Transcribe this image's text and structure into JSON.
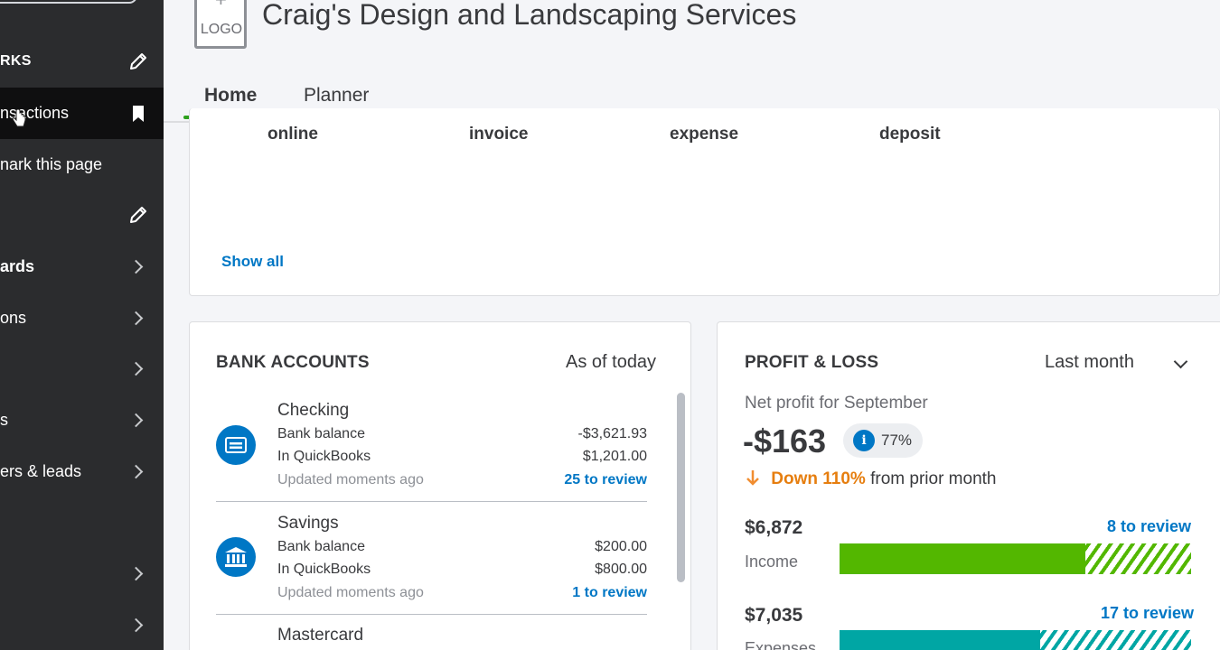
{
  "sidebar": {
    "items": [
      {
        "label": "RKS",
        "icon": "pencil-icon"
      },
      {
        "label": "nsactions",
        "icon": "bookmark-icon"
      },
      {
        "label": "nark this page"
      },
      {
        "label": "",
        "icon": "pencil-icon"
      },
      {
        "label": "ards",
        "icon": "chevron-right-icon"
      },
      {
        "label": "ons",
        "icon": "chevron-right-icon"
      },
      {
        "label": "",
        "icon": "chevron-right-icon"
      },
      {
        "label": "s",
        "icon": "chevron-right-icon"
      },
      {
        "label": "ers & leads",
        "icon": "chevron-right-icon"
      },
      {
        "label": "",
        "icon": "chevron-right-icon"
      },
      {
        "label": "",
        "icon": "chevron-right-icon"
      }
    ]
  },
  "header": {
    "logo_plus": "+",
    "logo_text": "LOGO",
    "company": "Craig's Design and Landscaping Services",
    "tabs": [
      "Home",
      "Planner"
    ]
  },
  "quick_actions": {
    "items": [
      "online",
      "invoice",
      "expense",
      "deposit"
    ],
    "show_all": "Show all"
  },
  "bank_accounts": {
    "title": "BANK ACCOUNTS",
    "as_of": "As of today",
    "accounts": [
      {
        "name": "Checking",
        "bank_label": "Bank balance",
        "bank_value": "-$3,621.93",
        "qb_label": "In QuickBooks",
        "qb_value": "$1,201.00",
        "updated": "Updated moments ago",
        "review": "25 to review",
        "icon": "credit-card-icon"
      },
      {
        "name": "Savings",
        "bank_label": "Bank balance",
        "bank_value": "$200.00",
        "qb_label": "In QuickBooks",
        "qb_value": "$800.00",
        "updated": "Updated moments ago",
        "review": "1 to review",
        "icon": "bank-icon"
      },
      {
        "name": "Mastercard"
      }
    ]
  },
  "profit_loss": {
    "title": "PROFIT & LOSS",
    "period": "Last month",
    "subtitle": "Net profit for September",
    "net": "-$163",
    "info_icon": "i",
    "pct": "77%",
    "change_down": "Down 110%",
    "change_rest": "from prior month",
    "income": {
      "amount": "$6,872",
      "label": "Income",
      "review": "8 to review",
      "reviewed_fraction": 0.7
    },
    "expenses": {
      "amount": "$7,035",
      "label": "Expenses",
      "review": "17 to review",
      "reviewed_fraction": 0.57
    },
    "colors": {
      "income": "#53b700",
      "expenses": "#00a6a4",
      "link": "#0077c5",
      "down": "#e67e0f"
    }
  }
}
